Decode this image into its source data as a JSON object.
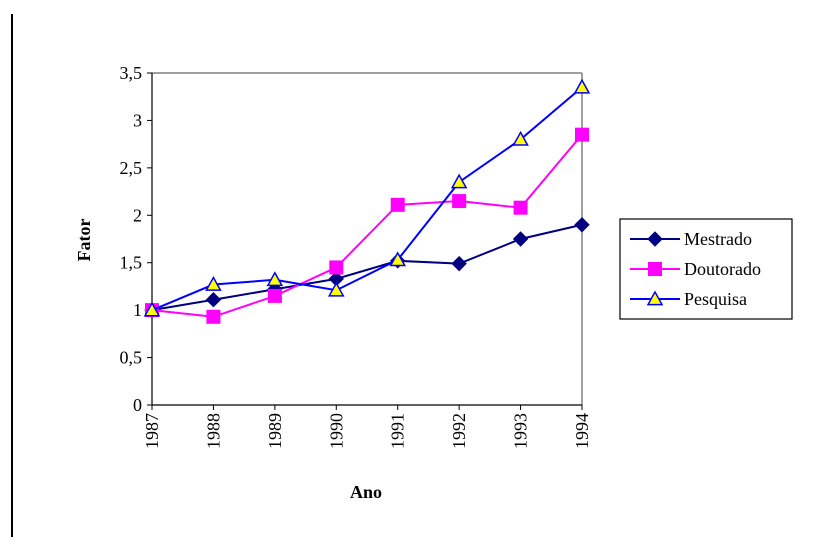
{
  "chart_data": {
    "type": "line",
    "title": "",
    "xlabel": "Ano",
    "ylabel": "Fator",
    "categories": [
      "1987",
      "1988",
      "1989",
      "1990",
      "1991",
      "1992",
      "1993",
      "1994"
    ],
    "ylim": [
      0,
      3.5
    ],
    "yticks": [
      0,
      0.5,
      1,
      1.5,
      2,
      2.5,
      3,
      3.5
    ],
    "ytick_labels": [
      "0",
      "0,5",
      "1",
      "1,5",
      "2",
      "2,5",
      "3",
      "3,5"
    ],
    "grid": false,
    "legend_position": "right",
    "series": [
      {
        "name": "Mestrado",
        "color": "#000080",
        "marker": "diamond",
        "values": [
          1.0,
          1.11,
          1.22,
          1.33,
          1.52,
          1.49,
          1.75,
          1.9
        ]
      },
      {
        "name": "Doutorado",
        "color": "#ff00ff",
        "marker": "square",
        "values": [
          1.0,
          0.93,
          1.15,
          1.45,
          2.11,
          2.15,
          2.08,
          2.85
        ]
      },
      {
        "name": "Pesquisa",
        "color": "#0000ff",
        "marker": "triangle",
        "marker_fill": "#ffff00",
        "values": [
          1.0,
          1.27,
          1.32,
          1.21,
          1.53,
          2.35,
          2.8,
          3.35
        ]
      }
    ]
  }
}
